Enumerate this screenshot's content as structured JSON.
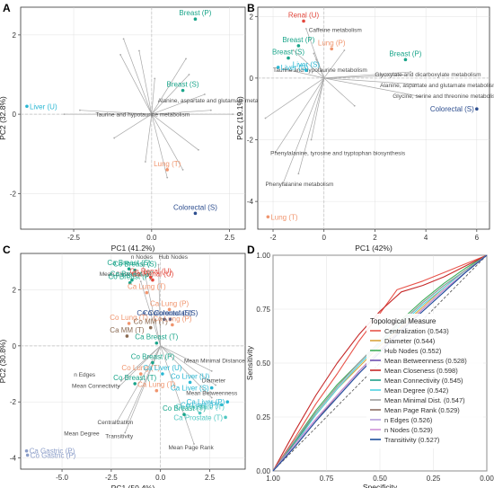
{
  "panel_labels": [
    "A",
    "B",
    "C",
    "D"
  ],
  "colors": {
    "breast": "#1aa58a",
    "liver": "#29b7d3",
    "lung": "#f0956e",
    "colorectal": "#2d4e8f",
    "renal": "#e3473c",
    "mm": "#8a6a52",
    "gastric": "#8b9dc8",
    "prostate": "#4fc7c2",
    "vector": "#a8a8a8",
    "vector_label": "#4d4d4d",
    "grid": "#d9d9d9",
    "zero_line": "#bdbdbd",
    "diagonal": "#4d4d4d"
  },
  "chart_data": [
    {
      "panel": "A",
      "type": "scatter",
      "title": "",
      "xlabel": "PC1 (41.2%)",
      "ylabel": "PC2 (32.8%)",
      "xlim": [
        -4.2,
        3.0
      ],
      "ylim": [
        -2.9,
        2.7
      ],
      "xticks": [
        -2.5,
        0.0,
        2.5
      ],
      "yticks": [
        -2,
        0,
        2
      ],
      "xtick_labels": [
        "-2.5",
        "0.0",
        "2.5"
      ],
      "ytick_labels": [
        "-2",
        "0",
        "2"
      ],
      "points": [
        {
          "label": "Breast (P)",
          "x": 1.4,
          "y": 2.4,
          "color": "breast"
        },
        {
          "label": "Liver (U)",
          "x": -4.0,
          "y": 0.2,
          "color": "liver"
        },
        {
          "label": "Breast (S)",
          "x": 1.0,
          "y": 0.6,
          "color": "breast"
        },
        {
          "label": "Lung (T)",
          "x": 0.5,
          "y": -1.4,
          "color": "lung"
        },
        {
          "label": "Colorectal (S)",
          "x": 1.4,
          "y": -2.5,
          "color": "colorectal"
        }
      ],
      "vector_labels": [
        {
          "label": "Alanine, aspartate and glutamate metabolism",
          "x": 0.2,
          "y": 0.3
        },
        {
          "label": "Taurine and hypotaurine metabolism",
          "x": -1.8,
          "y": -0.05
        }
      ],
      "vectors": [
        [
          -0.9,
          1.9
        ],
        [
          -1.0,
          1.5
        ],
        [
          -0.4,
          1.6
        ],
        [
          1.1,
          1.4
        ],
        [
          1.2,
          1.0
        ],
        [
          1.7,
          0.5
        ],
        [
          1.9,
          0.1
        ],
        [
          2.6,
          0.0
        ],
        [
          -2.8,
          0.0
        ],
        [
          -2.3,
          0.1
        ],
        [
          -1.2,
          -0.6
        ],
        [
          -0.2,
          -1.2
        ],
        [
          0.5,
          -1.6
        ],
        [
          1.0,
          -1.4
        ],
        [
          1.5,
          -0.9
        ],
        [
          0.1,
          0.9
        ]
      ]
    },
    {
      "panel": "B",
      "type": "scatter",
      "title": "",
      "xlabel": "PC1 (42%)",
      "ylabel": "PC2 (19.1%)",
      "xlim": [
        -2.6,
        6.5
      ],
      "ylim": [
        -4.9,
        2.3
      ],
      "xticks": [
        -2,
        0,
        2,
        4,
        6
      ],
      "yticks": [
        -4,
        -2,
        0,
        2
      ],
      "xtick_labels": [
        "-2",
        "0",
        "2",
        "4",
        "6"
      ],
      "ytick_labels": [
        "-4",
        "-2",
        "0",
        "2"
      ],
      "points": [
        {
          "label": "Renal (U)",
          "x": -0.8,
          "y": 1.85,
          "color": "renal"
        },
        {
          "label": "Breast (P)",
          "x": -1.0,
          "y": 1.05,
          "color": "breast"
        },
        {
          "label": "Lung (P)",
          "x": 0.3,
          "y": 0.95,
          "color": "lung"
        },
        {
          "label": "Breast (S)",
          "x": -1.4,
          "y": 0.65,
          "color": "breast"
        },
        {
          "label": "Liver (U)",
          "x": -1.8,
          "y": 0.35,
          "color": "liver"
        },
        {
          "label": "Liver (S)",
          "x": -0.7,
          "y": 0.25,
          "color": "liver"
        },
        {
          "label": "Breast (P)",
          "x": 3.2,
          "y": 0.6,
          "color": "breast"
        },
        {
          "label": "Colorectal (S)",
          "x": 6.0,
          "y": -1.0,
          "color": "colorectal"
        },
        {
          "label": "Lung (T)",
          "x": -2.2,
          "y": -4.5,
          "color": "lung"
        }
      ],
      "vector_labels": [
        {
          "label": "Caffeine metabolism",
          "x": -0.6,
          "y": 1.5
        },
        {
          "label": "Taurine and hypotaurine metabolism",
          "x": -2.0,
          "y": 0.2
        },
        {
          "label": "Glyoxylate and dicarboxylate metabolism",
          "x": 2.0,
          "y": 0.05
        },
        {
          "label": "Alanine, aspartate and glutamate metabolism",
          "x": 2.2,
          "y": -0.3
        },
        {
          "label": "Glycine, serine and threonine metabolism",
          "x": 2.7,
          "y": -0.65
        },
        {
          "label": "Phenylalanine, tyrosine and tryptophan biosynthesis",
          "x": -2.1,
          "y": -2.5
        },
        {
          "label": "Phenylalanine metabolism",
          "x": -2.3,
          "y": -3.5
        }
      ],
      "vectors": [
        [
          -0.7,
          1.6
        ],
        [
          -1.2,
          0.9
        ],
        [
          -0.4,
          0.8
        ],
        [
          -1.6,
          0.3
        ],
        [
          -0.3,
          0.6
        ],
        [
          0.8,
          0.9
        ],
        [
          3.4,
          0.2
        ],
        [
          3.6,
          -0.2
        ],
        [
          3.8,
          -0.6
        ],
        [
          3.1,
          0.1
        ],
        [
          -1.0,
          -3.1
        ],
        [
          -1.6,
          -3.4
        ],
        [
          -0.5,
          -2.0
        ],
        [
          -1.9,
          -2.4
        ],
        [
          -2.3,
          -1.3
        ],
        [
          1.2,
          -0.9
        ]
      ]
    },
    {
      "panel": "C",
      "type": "scatter",
      "title": "",
      "xlabel": "PC1 (50.4%)",
      "ylabel": "PC2 (30.8%)",
      "xlim": [
        -7.1,
        4.3
      ],
      "ylim": [
        -4.4,
        3.3
      ],
      "xticks": [
        -5.0,
        -2.5,
        0.0,
        2.5
      ],
      "yticks": [
        -4,
        -2,
        0,
        2
      ],
      "xtick_labels": [
        "-5.0",
        "-2.5",
        "0.0",
        "2.5"
      ],
      "ytick_labels": [
        "-4",
        "-2",
        "0",
        "2"
      ],
      "points": [
        {
          "label": "Ca Breast (S)",
          "x": -1.6,
          "y": 2.75,
          "color": "breast"
        },
        {
          "label": "Co Breast (S)",
          "x": -1.3,
          "y": 2.7,
          "color": "breast"
        },
        {
          "label": "Ca Breast (P)",
          "x": -1.45,
          "y": 2.35,
          "color": "breast"
        },
        {
          "label": "Co Breast (P)",
          "x": -1.55,
          "y": 2.25,
          "color": "breast"
        },
        {
          "label": "Co Renal (U)",
          "x": -0.5,
          "y": 2.45,
          "color": "renal"
        },
        {
          "label": "Ca Renal (U)",
          "x": -0.4,
          "y": 2.35,
          "color": "renal"
        },
        {
          "label": "Ca Lung (T)",
          "x": -0.7,
          "y": 1.9,
          "color": "lung"
        },
        {
          "label": "Ca Lung (P)",
          "x": 0.45,
          "y": 1.3,
          "color": "lung"
        },
        {
          "label": "Ca Colorectal (S)",
          "x": 0.2,
          "y": 0.95,
          "color": "colorectal"
        },
        {
          "label": "Co Colorectal (S)",
          "x": 0.5,
          "y": 0.95,
          "color": "colorectal"
        },
        {
          "label": "Co Lung (T)",
          "x": -1.6,
          "y": 0.8,
          "color": "lung"
        },
        {
          "label": "Co Lung (P)",
          "x": 0.6,
          "y": 0.75,
          "color": "lung"
        },
        {
          "label": "Co MM (T)",
          "x": -0.5,
          "y": 0.65,
          "color": "mm"
        },
        {
          "label": "Ca MM (T)",
          "x": -1.7,
          "y": 0.35,
          "color": "mm"
        },
        {
          "label": "Ca Breast (T)",
          "x": -0.2,
          "y": 0.1,
          "color": "breast"
        },
        {
          "label": "Co Breast (P)",
          "x": -0.4,
          "y": -0.6,
          "color": "breast"
        },
        {
          "label": "Co Lung (T)",
          "x": -1.0,
          "y": -1.0,
          "color": "lung"
        },
        {
          "label": "Ca Liver (U)",
          "x": 0.1,
          "y": -1.0,
          "color": "liver"
        },
        {
          "label": "Co Breast (T)",
          "x": -1.3,
          "y": -1.35,
          "color": "breast"
        },
        {
          "label": "Co Liver (U)",
          "x": 1.5,
          "y": -1.3,
          "color": "liver"
        },
        {
          "label": "Ca Lung (T)",
          "x": -0.2,
          "y": -1.6,
          "color": "lung"
        },
        {
          "label": "Ca Liver (S)",
          "x": 2.6,
          "y": -1.5,
          "color": "liver"
        },
        {
          "label": "Ca Liver (P)",
          "x": 3.4,
          "y": -2.0,
          "color": "liver"
        },
        {
          "label": "Co Liver (P)",
          "x": 3.1,
          "y": -2.1,
          "color": "liver"
        },
        {
          "label": "Co Breast (T)",
          "x": 1.2,
          "y": -2.45,
          "color": "breast"
        },
        {
          "label": "Co Prostate (T)",
          "x": 2.0,
          "y": -2.4,
          "color": "prostate"
        },
        {
          "label": "Ca Prostate (T)",
          "x": 3.3,
          "y": -2.55,
          "color": "prostate"
        },
        {
          "label": "Ca Gastric (P)",
          "x": -6.8,
          "y": -3.75,
          "color": "gastric"
        },
        {
          "label": "Co Gastric (P)",
          "x": -6.75,
          "y": -3.9,
          "color": "gastric"
        }
      ],
      "vector_labels": [
        {
          "label": "n Nodes",
          "x": -1.5,
          "y": 3.1
        },
        {
          "label": "Hub Nodes",
          "x": -0.1,
          "y": 3.1
        },
        {
          "label": "Mean Closeness",
          "x": -3.1,
          "y": 2.5
        },
        {
          "label": "Diameter",
          "x": 2.1,
          "y": -1.3
        },
        {
          "label": "Mean Minimal Distance",
          "x": 1.2,
          "y": -0.6
        },
        {
          "label": "Mean Betweenness",
          "x": 1.3,
          "y": -1.75
        },
        {
          "label": "n Edges",
          "x": -4.4,
          "y": -1.1
        },
        {
          "label": "Mean Connectivity",
          "x": -4.5,
          "y": -1.5
        },
        {
          "label": "Centralization",
          "x": -3.2,
          "y": -2.8
        },
        {
          "label": "Mean Degree",
          "x": -4.9,
          "y": -3.2
        },
        {
          "label": "Transitivity",
          "x": -2.8,
          "y": -3.3
        },
        {
          "label": "Mean Page Rank",
          "x": 0.4,
          "y": -3.7
        }
      ],
      "vectors": [
        [
          -0.9,
          2.9
        ],
        [
          -0.1,
          2.9
        ],
        [
          -1.0,
          2.3
        ],
        [
          2.8,
          -1.4
        ],
        [
          2.6,
          -0.9
        ],
        [
          2.6,
          -1.85
        ],
        [
          -2.0,
          -1.25
        ],
        [
          -2.1,
          -1.45
        ],
        [
          -1.7,
          -2.7
        ],
        [
          -2.2,
          -2.7
        ],
        [
          -1.8,
          -3.1
        ],
        [
          1.7,
          -3.5
        ]
      ]
    },
    {
      "panel": "D",
      "type": "line",
      "title": "",
      "xlabel": "Specificity",
      "ylabel": "Sensitivity",
      "xlim": [
        1.0,
        0.0
      ],
      "ylim": [
        0.0,
        1.0
      ],
      "xticks": [
        1.0,
        0.75,
        0.5,
        0.25,
        0.0
      ],
      "yticks": [
        0.0,
        0.25,
        0.5,
        0.75,
        1.0
      ],
      "xtick_labels": [
        "1.00",
        "0.75",
        "0.50",
        "0.25",
        "0.00"
      ],
      "ytick_labels": [
        "0.00",
        "0.25",
        "0.50",
        "0.75",
        "1.00"
      ],
      "legend_title": "Topological Measure",
      "legend_position": "bottom-right",
      "series": [
        {
          "name": "Centralization (0.543)",
          "color": "#e8534a",
          "x": [
            1,
            0.9,
            0.8,
            0.7,
            0.6,
            0.5,
            0.42,
            0.3,
            0.2,
            0.1,
            0
          ],
          "y": [
            0,
            0.15,
            0.31,
            0.45,
            0.6,
            0.73,
            0.84,
            0.88,
            0.92,
            0.96,
            1
          ]
        },
        {
          "name": "Diameter (0.544)",
          "color": "#d9a43a",
          "x": [
            1,
            0.9,
            0.8,
            0.7,
            0.6,
            0.5,
            0.4,
            0.3,
            0.2,
            0.1,
            0
          ],
          "y": [
            0,
            0.13,
            0.26,
            0.38,
            0.48,
            0.58,
            0.67,
            0.76,
            0.85,
            0.93,
            1
          ]
        },
        {
          "name": "Hub Nodes (0.552)",
          "color": "#3fae5a",
          "x": [
            1,
            0.9,
            0.8,
            0.7,
            0.6,
            0.5,
            0.4,
            0.3,
            0.2,
            0.1,
            0
          ],
          "y": [
            0,
            0.14,
            0.28,
            0.4,
            0.5,
            0.6,
            0.7,
            0.79,
            0.87,
            0.94,
            1
          ]
        },
        {
          "name": "Mean Betweenness (0.528)",
          "color": "#6d4fb0",
          "x": [
            1,
            0.9,
            0.8,
            0.7,
            0.6,
            0.5,
            0.4,
            0.3,
            0.2,
            0.1,
            0
          ],
          "y": [
            0,
            0.12,
            0.24,
            0.35,
            0.46,
            0.56,
            0.65,
            0.75,
            0.84,
            0.92,
            1
          ]
        },
        {
          "name": "Mean Closeness (0.598)",
          "color": "#c62828",
          "x": [
            1,
            0.9,
            0.8,
            0.7,
            0.6,
            0.5,
            0.4,
            0.3,
            0.2,
            0.1,
            0
          ],
          "y": [
            0,
            0.18,
            0.35,
            0.5,
            0.63,
            0.74,
            0.83,
            0.86,
            0.9,
            0.95,
            1
          ]
        },
        {
          "name": "Mean Connectivity (0.545)",
          "color": "#1f9e89",
          "x": [
            1,
            0.9,
            0.8,
            0.7,
            0.6,
            0.5,
            0.4,
            0.3,
            0.2,
            0.1,
            0
          ],
          "y": [
            0,
            0.13,
            0.27,
            0.39,
            0.5,
            0.6,
            0.69,
            0.78,
            0.86,
            0.93,
            1
          ]
        },
        {
          "name": "Mean Degree (0.542)",
          "color": "#4dd0e1",
          "x": [
            1,
            0.9,
            0.8,
            0.7,
            0.6,
            0.5,
            0.4,
            0.3,
            0.2,
            0.1,
            0
          ],
          "y": [
            0,
            0.12,
            0.26,
            0.38,
            0.49,
            0.59,
            0.68,
            0.77,
            0.85,
            0.93,
            1
          ]
        },
        {
          "name": "Mean Minimal Dist. (0.547)",
          "color": "#9e9e9e",
          "x": [
            1,
            0.9,
            0.8,
            0.7,
            0.6,
            0.5,
            0.4,
            0.3,
            0.2,
            0.1,
            0
          ],
          "y": [
            0,
            0.14,
            0.27,
            0.39,
            0.5,
            0.6,
            0.69,
            0.78,
            0.86,
            0.93,
            1
          ]
        },
        {
          "name": "Mean Page Rank (0.529)",
          "color": "#8d6e63",
          "x": [
            1,
            0.9,
            0.8,
            0.7,
            0.6,
            0.5,
            0.4,
            0.3,
            0.2,
            0.1,
            0
          ],
          "y": [
            0,
            0.11,
            0.23,
            0.35,
            0.46,
            0.56,
            0.66,
            0.75,
            0.84,
            0.92,
            1
          ]
        },
        {
          "name": "n Edges (0.526)",
          "color": "#b39ddb",
          "x": [
            1,
            0.9,
            0.8,
            0.7,
            0.6,
            0.5,
            0.4,
            0.3,
            0.2,
            0.1,
            0
          ],
          "y": [
            0,
            0.11,
            0.23,
            0.34,
            0.45,
            0.55,
            0.65,
            0.74,
            0.83,
            0.92,
            1
          ]
        },
        {
          "name": "n Nodes (0.529)",
          "color": "#ce93d8",
          "x": [
            1,
            0.9,
            0.8,
            0.7,
            0.6,
            0.5,
            0.4,
            0.3,
            0.2,
            0.1,
            0
          ],
          "y": [
            0,
            0.12,
            0.24,
            0.35,
            0.46,
            0.56,
            0.65,
            0.75,
            0.84,
            0.92,
            1
          ]
        },
        {
          "name": "Transitivity (0.527)",
          "color": "#1e4f9c",
          "x": [
            1,
            0.9,
            0.8,
            0.7,
            0.6,
            0.5,
            0.4,
            0.3,
            0.2,
            0.1,
            0
          ],
          "y": [
            0,
            0.11,
            0.23,
            0.34,
            0.45,
            0.55,
            0.65,
            0.74,
            0.83,
            0.92,
            1
          ]
        }
      ]
    }
  ]
}
